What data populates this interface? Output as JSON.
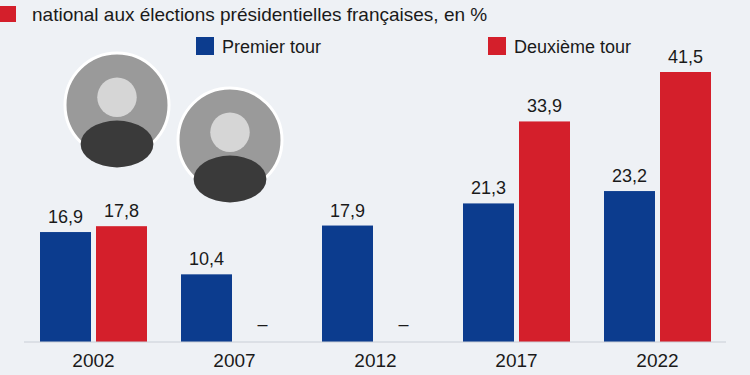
{
  "chart_data": {
    "type": "bar",
    "title": "national aux élections présidentielles françaises, en %",
    "categories": [
      "2002",
      "2007",
      "2012",
      "2017",
      "2022"
    ],
    "series": [
      {
        "name": "Premier tour",
        "color": "#0c3c8e",
        "values": [
          16.9,
          10.4,
          17.9,
          21.3,
          23.2
        ],
        "value_labels": [
          "16,9",
          "10,4",
          "17,9",
          "21,3",
          "23,2"
        ]
      },
      {
        "name": "Deuxième tour",
        "color": "#d41f2b",
        "values": [
          17.8,
          null,
          null,
          33.9,
          41.5
        ],
        "value_labels": [
          "17,8",
          "–",
          "–",
          "33,9",
          "41,5"
        ]
      }
    ],
    "ylim": [
      0,
      41.5
    ],
    "grid": false,
    "legend": "top",
    "data_labels": true,
    "tick_labels": "x"
  }
}
